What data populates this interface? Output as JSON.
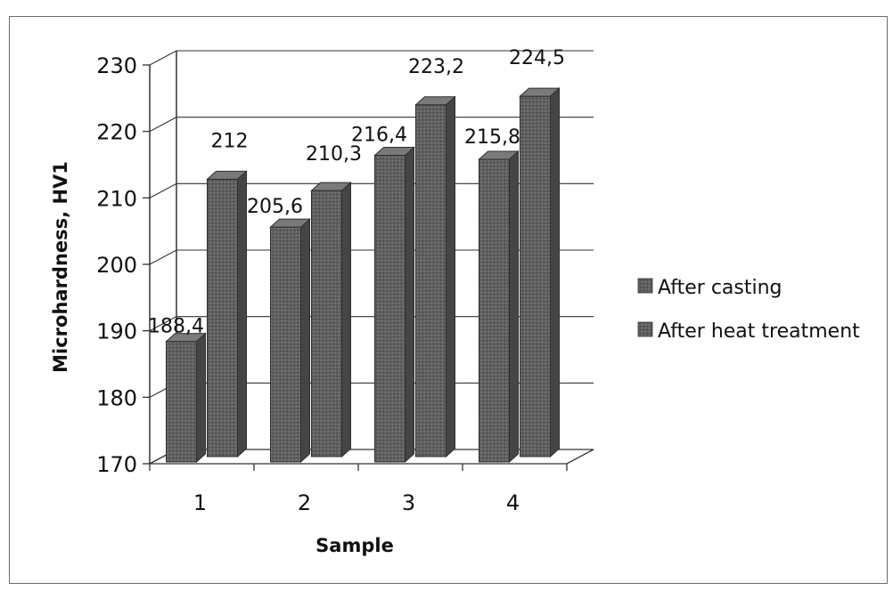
{
  "chart_data": {
    "type": "bar",
    "categories": [
      "1",
      "2",
      "3",
      "4"
    ],
    "series": [
      {
        "name": "After casting",
        "values": [
          188.4,
          205.6,
          216.4,
          215.8
        ],
        "labels": [
          "188,4",
          "205,6",
          "216,4",
          "215,8"
        ]
      },
      {
        "name": "After heat treatment",
        "values": [
          212,
          210.3,
          223.2,
          224.5
        ],
        "labels": [
          "212",
          "210,3",
          "223,2",
          "224,5"
        ]
      }
    ],
    "xlabel": "Sample",
    "ylabel": "Microhardness, HV1",
    "ylim": [
      170,
      230
    ],
    "yticks": [
      "170",
      "180",
      "190",
      "200",
      "210",
      "220",
      "230"
    ],
    "grid": true,
    "legend_position": "right",
    "colors": {
      "bar_face": "#5f5f5f",
      "bar_top": "#7a7a7a",
      "bar_side": "#454545",
      "grid": "#333333"
    }
  }
}
